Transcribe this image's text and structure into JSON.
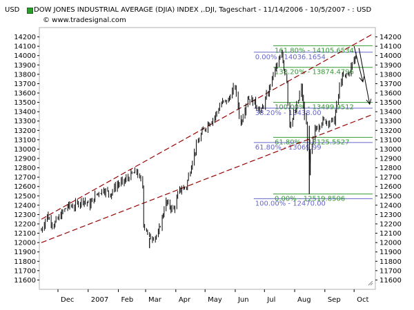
{
  "header": {
    "currency_left": "USD",
    "title": "DOW JONES INDUSTRIAL AVERAGE (DJIA) INDEX ,.DJI, Tageschart - 11/14/2006 - 10/5/2007 - : USD",
    "copyright": "© www.tradesignal.com"
  },
  "chart_data": {
    "type": "candlestick",
    "title": "DOW JONES INDUSTRIAL AVERAGE (DJIA) INDEX ,.DJI, Tageschart - 11/14/2006 - 10/5/2007 - : USD",
    "currency": "USD",
    "x_range": [
      "2006-11-14",
      "2007-10-05"
    ],
    "ylim": [
      11500,
      14300
    ],
    "y_ticks": [
      11600,
      11700,
      11800,
      11900,
      12000,
      12100,
      12200,
      12300,
      12400,
      12500,
      12600,
      12700,
      12800,
      12900,
      13000,
      13100,
      13200,
      13300,
      13400,
      13500,
      13600,
      13700,
      13800,
      13900,
      14000,
      14100,
      14200
    ],
    "x_tick_labels": [
      {
        "label": "Dec",
        "date": "2006-12-01"
      },
      {
        "label": "2007",
        "date": "2007-01-01"
      },
      {
        "label": "Feb",
        "date": "2007-02-01"
      },
      {
        "label": "Mar",
        "date": "2007-03-01"
      },
      {
        "label": "Apr",
        "date": "2007-04-01"
      },
      {
        "label": "May",
        "date": "2007-05-01"
      },
      {
        "label": "Jun",
        "date": "2007-06-01"
      },
      {
        "label": "Jul",
        "date": "2007-07-01"
      },
      {
        "label": "Aug",
        "date": "2007-08-01"
      },
      {
        "label": "Sep",
        "date": "2007-09-01"
      },
      {
        "label": "Oct",
        "date": "2007-10-01"
      }
    ],
    "series": [
      {
        "name": "DJIA",
        "color": "#000000",
        "points": [
          {
            "date": "2006-11-14",
            "close": 12130
          },
          {
            "date": "2006-11-20",
            "close": 12290
          },
          {
            "date": "2006-11-27",
            "close": 12190
          },
          {
            "date": "2006-12-04",
            "close": 12290
          },
          {
            "date": "2006-12-11",
            "close": 12390
          },
          {
            "date": "2006-12-18",
            "close": 12390
          },
          {
            "date": "2006-12-27",
            "close": 12460
          },
          {
            "date": "2007-01-03",
            "close": 12400
          },
          {
            "date": "2007-01-10",
            "close": 12520
          },
          {
            "date": "2007-01-17",
            "close": 12570
          },
          {
            "date": "2007-01-24",
            "close": 12520
          },
          {
            "date": "2007-01-31",
            "close": 12620
          },
          {
            "date": "2007-02-07",
            "close": 12650
          },
          {
            "date": "2007-02-14",
            "close": 12720
          },
          {
            "date": "2007-02-20",
            "close": 12760
          },
          {
            "date": "2007-02-26",
            "close": 12610
          },
          {
            "date": "2007-02-27",
            "close": 12210
          },
          {
            "date": "2007-03-05",
            "close": 12050
          },
          {
            "date": "2007-03-14",
            "close": 12080
          },
          {
            "date": "2007-03-22",
            "close": 12430
          },
          {
            "date": "2007-03-30",
            "close": 12350
          },
          {
            "date": "2007-04-05",
            "close": 12560
          },
          {
            "date": "2007-04-12",
            "close": 12600
          },
          {
            "date": "2007-04-20",
            "close": 12950
          },
          {
            "date": "2007-04-27",
            "close": 13150
          },
          {
            "date": "2007-05-04",
            "close": 13270
          },
          {
            "date": "2007-05-11",
            "close": 13340
          },
          {
            "date": "2007-05-18",
            "close": 13490
          },
          {
            "date": "2007-05-25",
            "close": 13520
          },
          {
            "date": "2007-06-01",
            "close": 13670
          },
          {
            "date": "2007-06-07",
            "close": 13270
          },
          {
            "date": "2007-06-14",
            "close": 13550
          },
          {
            "date": "2007-06-21",
            "close": 13500
          },
          {
            "date": "2007-06-28",
            "close": 13400
          },
          {
            "date": "2007-07-05",
            "close": 13600
          },
          {
            "date": "2007-07-12",
            "close": 13850
          },
          {
            "date": "2007-07-19",
            "close": 14000
          },
          {
            "date": "2007-07-24",
            "close": 13750
          },
          {
            "date": "2007-07-27",
            "close": 13260
          },
          {
            "date": "2007-08-02",
            "close": 13400
          },
          {
            "date": "2007-08-08",
            "close": 13650
          },
          {
            "date": "2007-08-13",
            "close": 13250
          },
          {
            "date": "2007-08-16",
            "close": 12850
          },
          {
            "date": "2007-08-22",
            "close": 13200
          },
          {
            "date": "2007-08-29",
            "close": 13300
          },
          {
            "date": "2007-09-05",
            "close": 13300
          },
          {
            "date": "2007-09-11",
            "close": 13300
          },
          {
            "date": "2007-09-18",
            "close": 13750
          },
          {
            "date": "2007-09-25",
            "close": 13800
          },
          {
            "date": "2007-10-01",
            "close": 13950
          },
          {
            "date": "2007-10-05",
            "close": 14050
          }
        ]
      }
    ],
    "trend_channel": {
      "color": "#990000",
      "style": "dashed",
      "upper": [
        {
          "date": "2006-11-14",
          "value": 12250
        },
        {
          "date": "2007-10-20",
          "value": 14230
        }
      ],
      "lower": [
        {
          "date": "2006-11-14",
          "value": 12000
        },
        {
          "date": "2007-10-20",
          "value": 13370
        }
      ]
    },
    "forecast_arrows": [
      {
        "from": {
          "date": "2007-10-01",
          "value": 14100
        },
        "to": {
          "date": "2007-10-10",
          "value": 13720
        }
      },
      {
        "from": {
          "date": "2007-10-06",
          "value": 14080
        },
        "to": {
          "date": "2007-10-17",
          "value": 13480
        }
      }
    ],
    "fibonacci": {
      "blue": {
        "color": "#6666cc",
        "start_date": "2007-06-20",
        "levels": [
          {
            "label": "0.00% - 14036.1654",
            "value": 14036.1654
          },
          {
            "label": "38.20% - 13438.00",
            "value": 13438
          },
          {
            "label": "61.80% - 13069.99",
            "value": 13069.99
          },
          {
            "label": "100.00% - 12470.00",
            "value": 12470
          }
        ]
      },
      "green": {
        "color": "#339933",
        "start_date": "2007-07-10",
        "levels": [
          {
            "label": "161.80% - 14105.6534",
            "value": 14105.6534
          },
          {
            "label": "138.20% - 13874.4796",
            "value": 13874.4796
          },
          {
            "label": "100.00% - 13499.9512",
            "value": 13499.9512
          },
          {
            "label": "61.80% - 13125.5527",
            "value": 13125.5527
          },
          {
            "label": "0.00% - 12519.8506",
            "value": 12519.8506
          }
        ]
      }
    }
  }
}
